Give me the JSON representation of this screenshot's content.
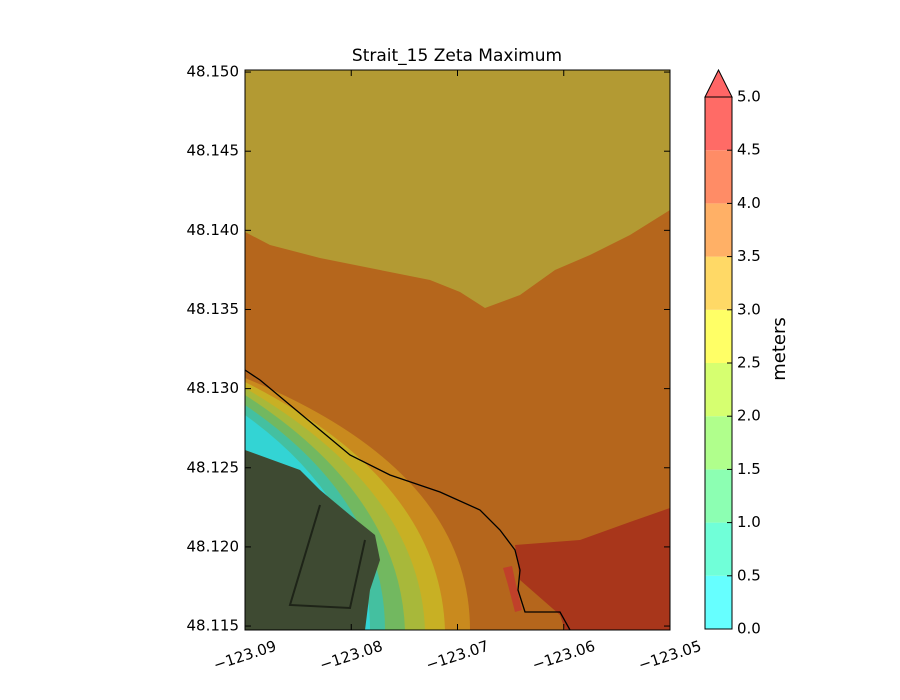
{
  "chart_data": {
    "type": "contour",
    "title": "Strait_15 Zeta Maximum",
    "xlim": [
      -123.09,
      -123.05
    ],
    "xticks": [
      {
        "value": -123.09,
        "label": "−123.09"
      },
      {
        "value": -123.08,
        "label": "−123.08"
      },
      {
        "value": -123.07,
        "label": "−123.07"
      },
      {
        "value": -123.06,
        "label": "−123.06"
      },
      {
        "value": -123.05,
        "label": "−123.05"
      }
    ],
    "ylim": [
      48.11475,
      48.15013
    ],
    "yticks": [
      {
        "value": 48.115,
        "label": "48.115"
      },
      {
        "value": 48.12,
        "label": "48.120"
      },
      48.125,
      {
        "value": 48.13,
        "label": "48.130"
      },
      48.135,
      {
        "value": 48.14,
        "label": "48.140"
      },
      48.145,
      {
        "value": 48.15,
        "label": "48.150"
      }
    ],
    "colorbar": {
      "label": "meters",
      "ticks": [
        {
          "value": 0,
          "label": "0.0"
        },
        0.5,
        {
          "value": 1,
          "label": "1.0"
        },
        1.5,
        {
          "value": 2,
          "label": "2.0"
        },
        2.5,
        {
          "value": 3,
          "label": "3.0"
        },
        3.5,
        {
          "value": 4,
          "label": "4.0"
        },
        4.5,
        {
          "value": 5,
          "label": "5.0"
        }
      ],
      "colors": [
        "#66ffff",
        "#70ffd8",
        "#8cffb2",
        "#b0ff8c",
        "#d6ff70",
        "#ffff66",
        "#ffd966",
        "#ffb066",
        "#ff8c66",
        "#ff6b66"
      ],
      "extend": "max",
      "extend_color": "#ff6666"
    }
  }
}
